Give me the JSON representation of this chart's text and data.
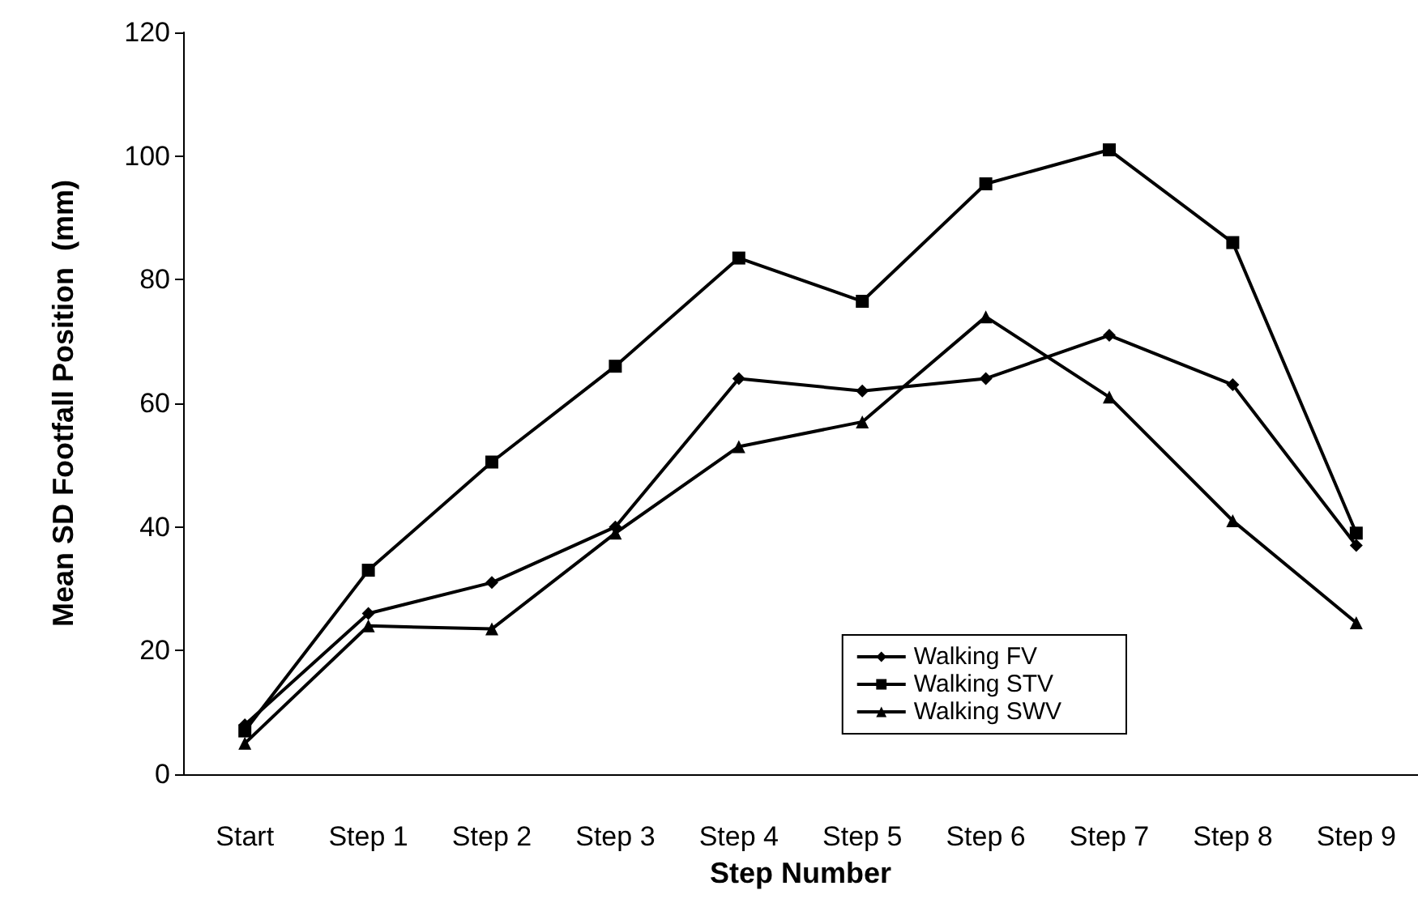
{
  "chart_data": {
    "type": "line",
    "xlabel": "Step Number",
    "ylabel": "Mean SD Footfall Position  (mm)",
    "categories": [
      "Start",
      "Step 1",
      "Step 2",
      "Step 3",
      "Step 4",
      "Step 5",
      "Step 6",
      "Step 7",
      "Step 8",
      "Step 9"
    ],
    "series": [
      {
        "name": "Walking FV",
        "color": "#000000",
        "marker": "diamond",
        "values": [
          8,
          26,
          31,
          40,
          64,
          62,
          64,
          71,
          63,
          37
        ]
      },
      {
        "name": "Walking STV",
        "color": "#000000",
        "marker": "square",
        "values": [
          7,
          33,
          50.5,
          66,
          83.5,
          76.5,
          95.5,
          101,
          86,
          39
        ]
      },
      {
        "name": "Walking SWV",
        "color": "#000000",
        "marker": "triangle",
        "values": [
          5,
          24,
          23.5,
          39,
          53,
          57,
          74,
          61,
          41,
          24.5
        ]
      }
    ],
    "ylim": [
      0,
      120
    ],
    "yticks": [
      0,
      20,
      40,
      60,
      80,
      100,
      120
    ],
    "grid": false,
    "legend": "bottom right",
    "line_style": "solid"
  }
}
